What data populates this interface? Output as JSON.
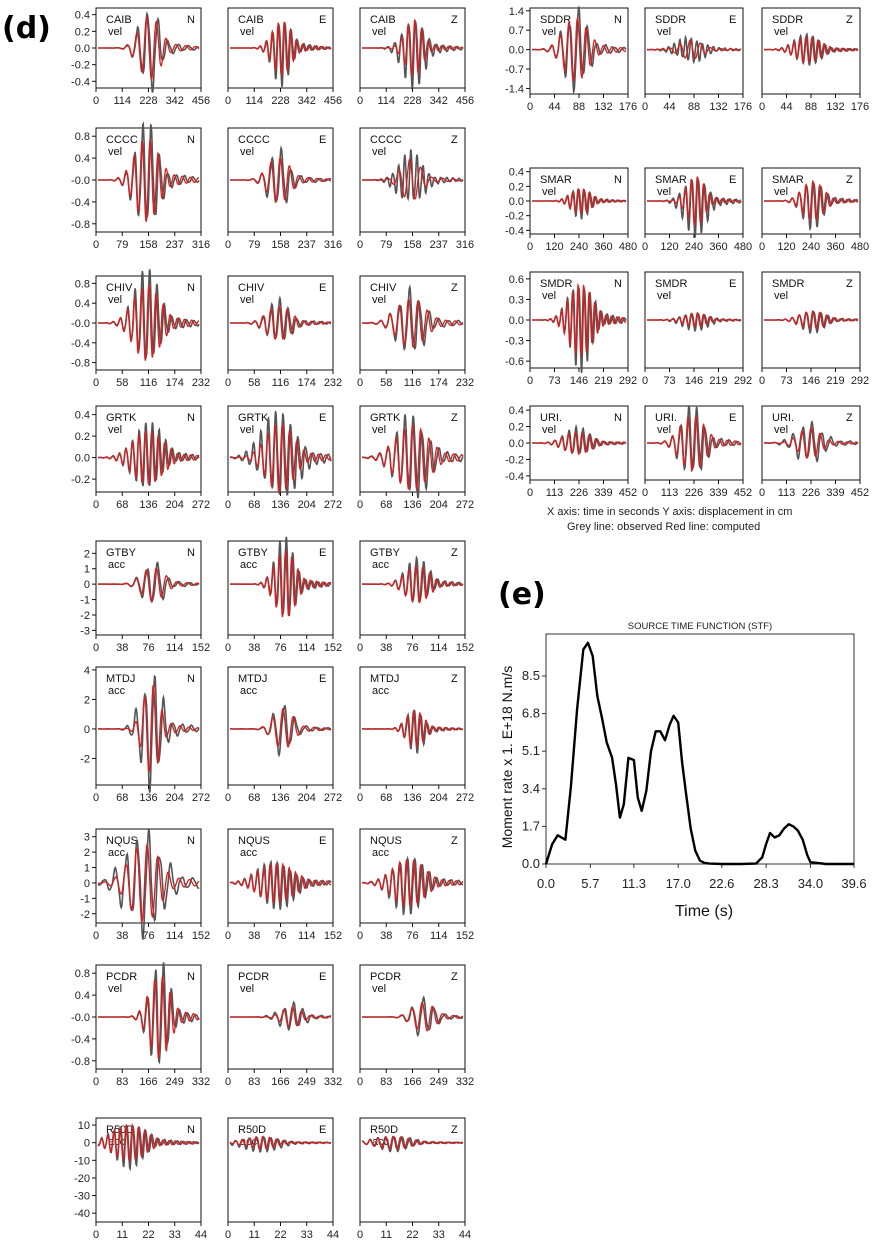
{
  "panel_d_label": "(d)",
  "panel_e_label": "(e)",
  "legend_lines": [
    "X axis: time in seconds    Y axis: displacement in cm",
    "Grey line: observed     Red line: computed"
  ],
  "colors": {
    "observed": "#555555",
    "computed": "#d42020",
    "frame": "#111111"
  },
  "chart_data": [
    {
      "type": "line",
      "panel": "d",
      "layout": "waveform-grid",
      "components": [
        "N",
        "E",
        "Z"
      ],
      "series": [
        "observed",
        "computed"
      ],
      "stations": [
        {
          "name": "CAIB",
          "kind": "vel",
          "xticks": [
            "0",
            "114",
            "228",
            "342",
            "456"
          ],
          "yticks": [
            "0.4",
            "0.2",
            "0.0",
            "-0.2",
            "-0.4"
          ],
          "ylim": [
            -0.48,
            0.48
          ],
          "peak": 0.45,
          "center": 0.53,
          "width": 0.09,
          "amps": [
            1,
            0.85,
            0.9
          ]
        },
        {
          "name": "CCCC",
          "kind": "vel",
          "xticks": [
            "0",
            "79",
            "158",
            "237",
            "316"
          ],
          "yticks": [
            "0.8",
            "0.4",
            "-0.0",
            "-0.4",
            "-0.8"
          ],
          "ylim": [
            -0.95,
            0.95
          ],
          "peak": 0.9,
          "center": 0.5,
          "width": 0.1,
          "amps": [
            1,
            0.55,
            0.5
          ]
        },
        {
          "name": "CHIV",
          "kind": "vel",
          "xticks": [
            "0",
            "58",
            "116",
            "174",
            "232"
          ],
          "yticks": [
            "0.8",
            "0.4",
            "-0.0",
            "-0.4",
            "-0.8"
          ],
          "ylim": [
            -0.95,
            0.95
          ],
          "peak": 0.9,
          "center": 0.5,
          "width": 0.12,
          "amps": [
            1,
            0.45,
            0.65
          ]
        },
        {
          "name": "GRTK",
          "kind": "vel",
          "xticks": [
            "0",
            "68",
            "136",
            "204",
            "272"
          ],
          "yticks": [
            "0.4",
            "0.2",
            "0.0",
            "-0.2"
          ],
          "ylim": [
            -0.32,
            0.48
          ],
          "peak": 0.42,
          "center": 0.5,
          "width": 0.14,
          "amps": [
            0.7,
            0.9,
            0.85
          ]
        },
        {
          "name": "GTBY",
          "kind": "acc",
          "xticks": [
            "0",
            "38",
            "76",
            "114",
            "152"
          ],
          "yticks": [
            "2",
            "1",
            "0",
            "-1",
            "-2",
            "-3"
          ],
          "ylim": [
            -3.3,
            2.8
          ],
          "peak": 2.6,
          "center": 0.55,
          "width": 0.1,
          "amps": [
            0.5,
            1,
            0.55
          ]
        },
        {
          "name": "MTDJ",
          "kind": "acc",
          "xticks": [
            "0",
            "68",
            "136",
            "204",
            "272"
          ],
          "yticks": [
            "4",
            "2",
            "0",
            "-2"
          ],
          "ylim": [
            -3.8,
            4.2
          ],
          "peak": 3.6,
          "center": 0.52,
          "width": 0.09,
          "amps": [
            1,
            0.45,
            0.4
          ]
        },
        {
          "name": "NQUS",
          "kind": "acc",
          "xticks": [
            "0",
            "38",
            "76",
            "114",
            "152"
          ],
          "yticks": [
            "3",
            "2",
            "1",
            "0",
            "-1",
            "-2"
          ],
          "ylim": [
            -2.6,
            3.5
          ],
          "peak": 3.0,
          "center": 0.45,
          "width": 0.15,
          "amps": [
            1,
            0.5,
            0.6
          ]
        },
        {
          "name": "PCDR",
          "kind": "vel",
          "xticks": [
            "0",
            "83",
            "166",
            "249",
            "332"
          ],
          "yticks": [
            "0.8",
            "0.4",
            "-0.0",
            "-0.4",
            "-0.8"
          ],
          "ylim": [
            -0.95,
            0.95
          ],
          "peak": 0.9,
          "center": 0.6,
          "width": 0.1,
          "amps": [
            1,
            0.25,
            0.35
          ]
        },
        {
          "name": "R50D",
          "kind": "acc",
          "xticks": [
            "0",
            "11",
            "22",
            "33",
            "44"
          ],
          "yticks": [
            "10",
            "0",
            "-10",
            "-20",
            "-30",
            "-40"
          ],
          "ylim": [
            -45,
            14
          ],
          "peak": 12,
          "center": 0.3,
          "width": 0.15,
          "amps": [
            1,
            0.35,
            0.35
          ]
        },
        {
          "name": "SDDR",
          "kind": "vel",
          "xticks": [
            "0",
            "44",
            "88",
            "132",
            "176"
          ],
          "yticks": [
            "1.4",
            "0.7",
            "0.0",
            "-0.7",
            "-1.4"
          ],
          "ylim": [
            -1.6,
            1.5
          ],
          "peak": 1.35,
          "center": 0.45,
          "width": 0.12,
          "amps": [
            1,
            0.3,
            0.4
          ]
        },
        {
          "name": "SMAR",
          "kind": "vel",
          "xticks": [
            "0",
            "120",
            "240",
            "360",
            "480"
          ],
          "yticks": [
            "0.4",
            "0.2",
            "0.0",
            "-0.2",
            "-0.4"
          ],
          "ylim": [
            -0.45,
            0.45
          ],
          "peak": 0.4,
          "center": 0.5,
          "width": 0.1,
          "amps": [
            0.5,
            1,
            0.8
          ]
        },
        {
          "name": "SMDR",
          "kind": "vel",
          "xticks": [
            "0",
            "73",
            "146",
            "219",
            "292"
          ],
          "yticks": [
            "0.6",
            "0.3",
            "0.0",
            "-0.3",
            "-0.6"
          ],
          "ylim": [
            -0.7,
            0.7
          ],
          "peak": 0.62,
          "center": 0.5,
          "width": 0.12,
          "amps": [
            1,
            0.2,
            0.25
          ]
        },
        {
          "name": "URI.",
          "kind": "vel",
          "xticks": [
            "0",
            "113",
            "226",
            "339",
            "452"
          ],
          "yticks": [
            "0.4",
            "0.2",
            "0.0",
            "-0.2",
            "-0.4"
          ],
          "ylim": [
            -0.45,
            0.45
          ],
          "peak": 0.4,
          "center": 0.5,
          "width": 0.12,
          "amps": [
            0.4,
            1,
            0.55
          ]
        }
      ]
    },
    {
      "type": "line",
      "panel": "e",
      "title": "SOURCE TIME FUNCTION (STF)",
      "ylabel": "Moment rate x 1. E+18 N.m/s",
      "xlabel": "Time (s)",
      "xlim": [
        0.0,
        39.6
      ],
      "ylim": [
        0.0,
        10.4
      ],
      "xticks": [
        "0.0",
        "5.7",
        "11.3",
        "17.0",
        "22.6",
        "28.3",
        "34.0",
        "39.6"
      ],
      "yticks": [
        "0.0",
        "1.7",
        "3.4",
        "5.1",
        "6.8",
        "8.5"
      ],
      "x": [
        0,
        0.8,
        1.5,
        2.5,
        3.2,
        4.0,
        4.8,
        5.4,
        6.0,
        6.6,
        7.2,
        7.8,
        8.5,
        9.0,
        9.5,
        10.0,
        10.6,
        11.3,
        11.8,
        12.3,
        12.9,
        13.5,
        14.1,
        14.7,
        15.3,
        15.9,
        16.4,
        17.0,
        17.5,
        18.0,
        18.6,
        19.2,
        19.8,
        20.4,
        21.0,
        22.6,
        25.0,
        27.0,
        27.8,
        28.3,
        28.8,
        29.4,
        30.0,
        30.6,
        31.2,
        31.8,
        32.4,
        33.0,
        33.6,
        34.0,
        36.0,
        39.6
      ],
      "y": [
        0.0,
        0.9,
        1.3,
        1.1,
        3.5,
        7.0,
        9.7,
        10.0,
        9.4,
        7.6,
        6.6,
        5.5,
        4.8,
        3.6,
        2.1,
        2.7,
        4.8,
        4.7,
        3.0,
        2.4,
        3.3,
        5.1,
        6.0,
        6.0,
        5.6,
        6.3,
        6.7,
        6.4,
        4.6,
        3.2,
        1.6,
        0.6,
        0.15,
        0.05,
        0.02,
        0.0,
        0.0,
        0.02,
        0.3,
        0.9,
        1.4,
        1.2,
        1.3,
        1.6,
        1.8,
        1.7,
        1.5,
        1.1,
        0.4,
        0.08,
        0.0,
        0.0
      ]
    }
  ]
}
